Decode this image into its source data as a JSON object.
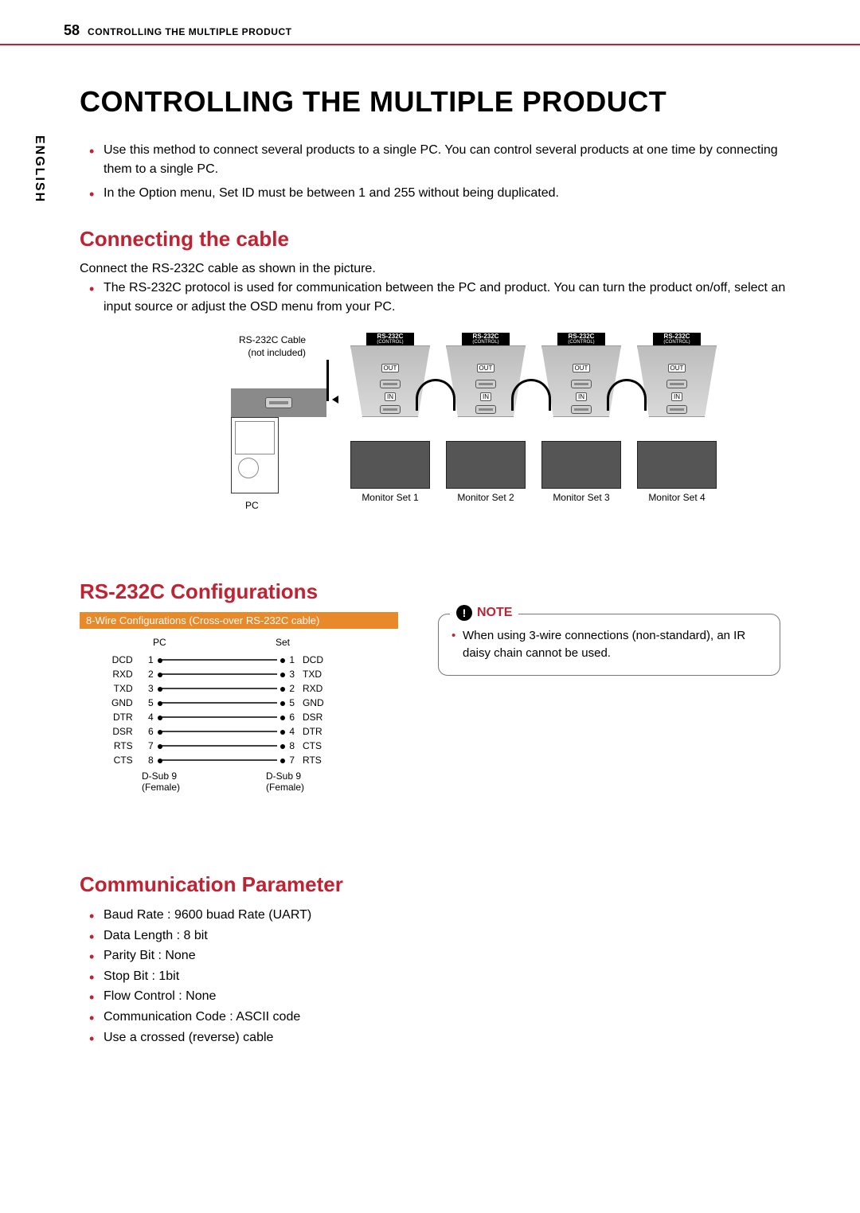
{
  "header": {
    "page_num": "58",
    "section": "CONTROLLING THE MULTIPLE PRODUCT"
  },
  "vertical_label": "ENGLISH",
  "title": "CONTROLLING THE MULTIPLE PRODUCT",
  "intro": [
    "Use this method to connect several products to a single PC. You can control several products at one time by connecting them to a single PC.",
    "In the Option menu, Set ID must be between 1 and 255 without being duplicated."
  ],
  "s1": {
    "heading": "Connecting the cable",
    "text": "Connect the RS-232C cable as shown in the picture.",
    "bullet": "The RS-232C protocol is used for communication between the PC and product. You can turn the product on/off, select an input source or adjust the OSD menu from your PC."
  },
  "diagram": {
    "cable_label_l1": "RS-232C Cable",
    "cable_label_l2": "(not included)",
    "pc_label": "PC",
    "unit_header_main": "RS-232C",
    "unit_header_sub": "(CONTROL)",
    "io_out": "OUT",
    "io_in": "IN",
    "monitors": [
      "Monitor Set 1",
      "Monitor Set 2",
      "Monitor Set 3",
      "Monitor Set 4"
    ]
  },
  "s2": {
    "heading": "RS-232C Configurations",
    "banner": "8-Wire Configurations (Cross-over RS-232C cable)",
    "col_pc": "PC",
    "col_set": "Set",
    "pins_pc": [
      {
        "label": "DCD",
        "num": "1"
      },
      {
        "label": "RXD",
        "num": "2"
      },
      {
        "label": "TXD",
        "num": "3"
      },
      {
        "label": "GND",
        "num": "5"
      },
      {
        "label": "DTR",
        "num": "4"
      },
      {
        "label": "DSR",
        "num": "6"
      },
      {
        "label": "RTS",
        "num": "7"
      },
      {
        "label": "CTS",
        "num": "8"
      }
    ],
    "pins_set": [
      {
        "label": "DCD",
        "num": "1"
      },
      {
        "label": "TXD",
        "num": "3"
      },
      {
        "label": "RXD",
        "num": "2"
      },
      {
        "label": "GND",
        "num": "5"
      },
      {
        "label": "DSR",
        "num": "6"
      },
      {
        "label": "DTR",
        "num": "4"
      },
      {
        "label": "CTS",
        "num": "8"
      },
      {
        "label": "RTS",
        "num": "7"
      }
    ],
    "connector_l1": "D-Sub 9",
    "connector_l2": "(Female)"
  },
  "note": {
    "label": "NOTE",
    "text": "When using 3-wire connections (non-standard), an IR daisy chain cannot be used."
  },
  "s3": {
    "heading": "Communication Parameter",
    "items": [
      "Baud Rate : 9600 buad Rate (UART)",
      "Data Length : 8 bit",
      "Parity Bit : None",
      "Stop Bit : 1bit",
      "Flow Control : None",
      "Communication Code : ASCII code",
      "Use a crossed (reverse) cable"
    ]
  },
  "colors": {
    "accent": "#c12232",
    "orange": "#e88a2a"
  }
}
